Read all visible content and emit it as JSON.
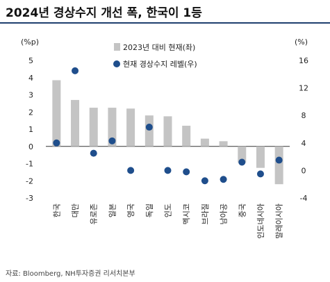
{
  "title": "2024년 경상수지 개선 폭, 한국이 1등",
  "source": "자료: Bloomberg, NH투자증권 리서치본부",
  "chart_data": {
    "type": "bar",
    "categories": [
      "한국",
      "대만",
      "유로존",
      "일본",
      "영국",
      "독일",
      "인도",
      "멕시코",
      "브라질",
      "남아공",
      "중국",
      "인도네시아",
      "말레이시아"
    ],
    "series": [
      {
        "name": "2023년 대비 현재(좌)",
        "type": "bar",
        "axis": "left",
        "color": "#c4c4c4",
        "values": [
          3.85,
          2.7,
          2.25,
          2.25,
          2.2,
          1.8,
          1.75,
          1.2,
          0.45,
          0.3,
          -0.95,
          -1.25,
          -2.2
        ]
      },
      {
        "name": "현재 경상수지 레벨(우)",
        "type": "scatter",
        "axis": "right",
        "color": "#1f4e8c",
        "values": [
          4.0,
          14.5,
          2.5,
          4.3,
          0.0,
          6.3,
          0.0,
          -0.2,
          -1.5,
          -1.3,
          1.2,
          -0.5,
          1.5
        ]
      }
    ],
    "y_left": {
      "unit": "(%p)",
      "min": -3,
      "max": 5,
      "ticks": [
        -3,
        -2,
        -1,
        0,
        1,
        2,
        3,
        4,
        5
      ]
    },
    "y_right": {
      "unit": "(%)",
      "min": -4,
      "max": 16,
      "ticks": [
        -4,
        0,
        4,
        8,
        12,
        16
      ]
    },
    "legend_position": "top-center",
    "grid": false
  }
}
